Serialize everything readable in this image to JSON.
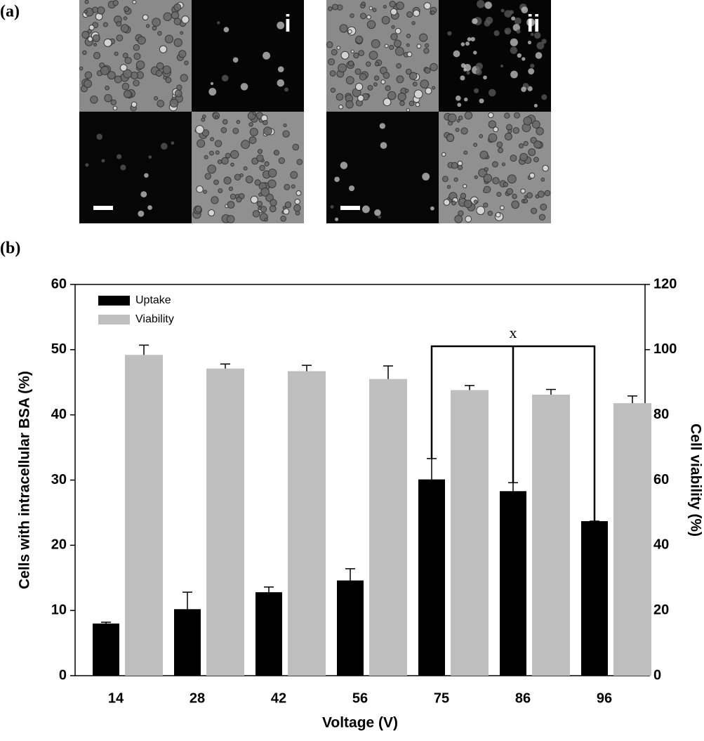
{
  "figure_labels": [
    "(a)",
    "(b)"
  ],
  "panels": [
    "i",
    "ii"
  ],
  "chart_data": {
    "type": "bar",
    "x_label": "Voltage (V)",
    "y_label": "Cells with intracellular BSA (%)",
    "y2_label": "Cell viability (%)",
    "categories": [
      "14",
      "28",
      "42",
      "56",
      "75",
      "86",
      "96"
    ],
    "series": [
      {
        "name": "Uptake",
        "color": "#000000",
        "values": [
          8.0,
          10.2,
          12.8,
          14.6,
          30.1,
          28.3,
          23.7
        ],
        "errors": [
          0.2,
          2.6,
          0.8,
          1.8,
          3.2,
          1.3,
          0
        ]
      },
      {
        "name": "Viability",
        "color": "#bfbfbf",
        "axis": "y2",
        "values": [
          98.4,
          94.2,
          93.4,
          91.0,
          87.6,
          86.2,
          83.6
        ],
        "errors": [
          3.0,
          1.4,
          1.8,
          4.0,
          1.4,
          1.6,
          2.2
        ]
      }
    ],
    "ylim": [
      0,
      60
    ],
    "yticks": [
      0,
      10,
      20,
      30,
      40,
      50,
      60
    ],
    "y2lim": [
      0,
      120
    ],
    "y2ticks": [
      0,
      20,
      40,
      60,
      80,
      100,
      120
    ],
    "legend": "upper left",
    "annotation": "x"
  }
}
